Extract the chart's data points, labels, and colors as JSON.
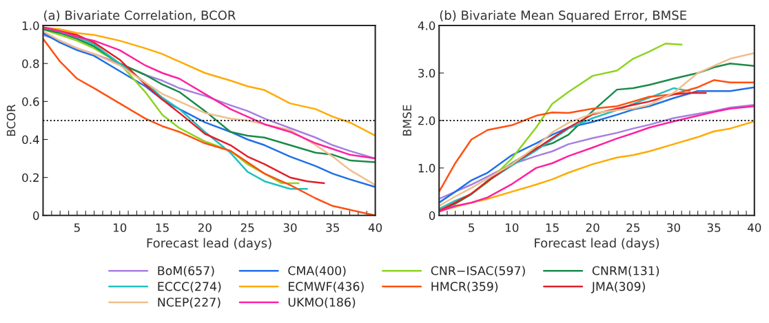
{
  "chart_data": [
    {
      "type": "line",
      "title": "(a) Bivariate Correlation, BCOR",
      "xlabel": "Forecast lead (days)",
      "ylabel": "BCOR",
      "x": [
        1,
        3,
        5,
        7,
        10,
        13,
        15,
        17,
        20,
        23,
        25,
        27,
        30,
        33,
        35,
        37,
        40
      ],
      "series": [
        {
          "name": "BoM(657)",
          "color": "#a57fe0",
          "values": [
            0.95,
            0.92,
            0.88,
            0.85,
            0.8,
            0.74,
            0.71,
            0.67,
            0.63,
            0.58,
            0.55,
            0.51,
            0.46,
            0.41,
            0.37,
            0.34,
            0.3
          ]
        },
        {
          "name": "CMA(400)",
          "color": "#1f6fe8",
          "values": [
            0.96,
            0.91,
            0.87,
            0.84,
            0.76,
            0.68,
            0.61,
            0.56,
            0.49,
            0.44,
            0.4,
            0.37,
            0.31,
            0.26,
            0.22,
            0.19,
            0.15
          ]
        },
        {
          "name": "CNR−ISAC(597)",
          "color": "#8cd41e",
          "x": [
            1,
            3,
            5,
            7,
            10,
            13,
            15,
            17,
            20,
            23,
            25,
            27,
            29,
            31
          ],
          "values": [
            0.98,
            0.95,
            0.92,
            0.88,
            0.8,
            0.65,
            0.53,
            0.46,
            0.39,
            0.34,
            0.27,
            0.22,
            0.17,
            0.17
          ]
        },
        {
          "name": "CNRM(131)",
          "color": "#1a8a4a",
          "values": [
            0.98,
            0.96,
            0.93,
            0.89,
            0.8,
            0.74,
            0.69,
            0.65,
            0.55,
            0.44,
            0.42,
            0.41,
            0.37,
            0.33,
            0.32,
            0.29,
            0.28
          ]
        },
        {
          "name": "ECCC(274)",
          "color": "#22bfbf",
          "x": [
            1,
            3,
            5,
            7,
            10,
            13,
            15,
            17,
            20,
            23,
            25,
            27,
            30,
            32
          ],
          "values": [
            0.99,
            0.97,
            0.94,
            0.9,
            0.8,
            0.7,
            0.62,
            0.56,
            0.44,
            0.33,
            0.23,
            0.18,
            0.14,
            0.14
          ]
        },
        {
          "name": "ECMWF(436)",
          "color": "#ffaa00",
          "values": [
            0.99,
            0.98,
            0.96,
            0.95,
            0.92,
            0.88,
            0.85,
            0.81,
            0.75,
            0.71,
            0.68,
            0.66,
            0.59,
            0.56,
            0.52,
            0.49,
            0.42
          ]
        },
        {
          "name": "HMCR(359)",
          "color": "#ff5010",
          "values": [
            0.93,
            0.81,
            0.72,
            0.67,
            0.59,
            0.51,
            0.47,
            0.44,
            0.38,
            0.34,
            0.28,
            0.22,
            0.16,
            0.09,
            0.05,
            0.03,
            0.0
          ]
        },
        {
          "name": "JMA(309)",
          "color": "#e0202a",
          "x": [
            1,
            3,
            5,
            7,
            10,
            13,
            15,
            17,
            20,
            23,
            25,
            27,
            30,
            32,
            34
          ],
          "values": [
            0.99,
            0.97,
            0.95,
            0.91,
            0.82,
            0.69,
            0.61,
            0.54,
            0.43,
            0.37,
            0.31,
            0.27,
            0.2,
            0.18,
            0.17
          ]
        },
        {
          "name": "NCEP(227)",
          "color": "#f0be8c",
          "values": [
            0.97,
            0.92,
            0.88,
            0.85,
            0.79,
            0.7,
            0.64,
            0.6,
            0.54,
            0.51,
            0.5,
            0.48,
            0.45,
            0.37,
            0.31,
            0.24,
            0.16
          ]
        },
        {
          "name": "UKMO(186)",
          "color": "#ff20a0",
          "values": [
            0.99,
            0.97,
            0.94,
            0.92,
            0.87,
            0.79,
            0.75,
            0.72,
            0.64,
            0.56,
            0.52,
            0.48,
            0.44,
            0.38,
            0.35,
            0.32,
            0.3
          ]
        }
      ],
      "xlim": [
        1,
        40
      ],
      "ylim": [
        0,
        1
      ],
      "xticks": [
        {
          "value": 2,
          "label": null
        },
        {
          "value": 3,
          "label": null
        },
        {
          "value": 4,
          "label": null
        },
        5,
        {
          "value": 6,
          "label": null
        },
        {
          "value": 7,
          "label": null
        },
        {
          "value": 8,
          "label": null
        },
        {
          "value": 9,
          "label": null
        },
        10,
        {
          "value": 11,
          "label": null
        },
        {
          "value": 12,
          "label": null
        },
        {
          "value": 13,
          "label": null
        },
        {
          "value": 14,
          "label": null
        },
        15,
        {
          "value": 16,
          "label": null
        },
        {
          "value": 17,
          "label": null
        },
        {
          "value": 18,
          "label": null
        },
        {
          "value": 19,
          "label": null
        },
        20,
        {
          "value": 21,
          "label": null
        },
        {
          "value": 22,
          "label": null
        },
        {
          "value": 23,
          "label": null
        },
        {
          "value": 24,
          "label": null
        },
        25,
        {
          "value": 26,
          "label": null
        },
        {
          "value": 27,
          "label": null
        },
        {
          "value": 28,
          "label": null
        },
        {
          "value": 29,
          "label": null
        },
        30,
        {
          "value": 31,
          "label": null
        },
        {
          "value": 32,
          "label": null
        },
        {
          "value": 33,
          "label": null
        },
        {
          "value": 34,
          "label": null
        },
        35,
        {
          "value": 36,
          "label": null
        },
        {
          "value": 37,
          "label": null
        },
        {
          "value": 38,
          "label": null
        },
        {
          "value": 39,
          "label": null
        },
        40
      ],
      "yticks": [
        0,
        0.2,
        0.4,
        0.6,
        0.8,
        {
          "value": 1,
          "label": "1.0"
        }
      ],
      "ref_lines": [
        {
          "axis": "y",
          "value": 0.5,
          "color": "#000000",
          "line_style": "dotted"
        }
      ],
      "grid": false,
      "legend": "bottom"
    },
    {
      "type": "line",
      "title": "(b) Bivariate Mean Squared Error, BMSE",
      "xlabel": "Forecast lead (days)",
      "ylabel": "BMSE",
      "x": [
        1,
        3,
        5,
        7,
        10,
        13,
        15,
        17,
        20,
        23,
        25,
        27,
        30,
        33,
        35,
        37,
        40
      ],
      "series": [
        {
          "name": "BoM(657)",
          "color": "#a57fe0",
          "values": [
            0.35,
            0.5,
            0.65,
            0.82,
            1.08,
            1.25,
            1.35,
            1.5,
            1.63,
            1.74,
            1.83,
            1.91,
            2.05,
            2.14,
            2.2,
            2.27,
            2.33
          ]
        },
        {
          "name": "CMA(400)",
          "color": "#1f6fe8",
          "values": [
            0.27,
            0.5,
            0.74,
            0.9,
            1.27,
            1.52,
            1.7,
            1.85,
            1.97,
            2.12,
            2.23,
            2.3,
            2.47,
            2.62,
            2.62,
            2.62,
            2.7
          ]
        },
        {
          "name": "CNR−ISAC(597)",
          "color": "#8cd41e",
          "x": [
            1,
            3,
            5,
            7,
            10,
            13,
            15,
            17,
            20,
            23,
            25,
            27,
            29,
            31
          ],
          "values": [
            0.1,
            0.25,
            0.45,
            0.7,
            1.2,
            1.85,
            2.35,
            2.6,
            2.94,
            3.05,
            3.3,
            3.45,
            3.62,
            3.6
          ]
        },
        {
          "name": "CNRM(131)",
          "color": "#1a8a4a",
          "values": [
            0.1,
            0.25,
            0.45,
            0.73,
            1.1,
            1.42,
            1.52,
            1.7,
            2.2,
            2.65,
            2.68,
            2.75,
            2.88,
            3.0,
            3.12,
            3.2,
            3.15
          ]
        },
        {
          "name": "ECCC(274)",
          "color": "#22bfbf",
          "x": [
            1,
            3,
            5,
            7,
            10,
            13,
            15,
            17,
            20,
            23,
            25,
            27,
            30,
            32
          ],
          "values": [
            0.14,
            0.31,
            0.45,
            0.72,
            1.05,
            1.37,
            1.6,
            1.83,
            2.05,
            2.22,
            2.35,
            2.48,
            2.68,
            2.62
          ]
        },
        {
          "name": "ECMWF(436)",
          "color": "#ffaa00",
          "values": [
            0.1,
            0.18,
            0.27,
            0.35,
            0.5,
            0.65,
            0.76,
            0.9,
            1.08,
            1.22,
            1.27,
            1.35,
            1.5,
            1.65,
            1.77,
            1.83,
            1.98
          ]
        },
        {
          "name": "HMCR(359)",
          "color": "#ff5010",
          "values": [
            0.5,
            1.1,
            1.6,
            1.8,
            1.9,
            2.1,
            2.17,
            2.16,
            2.25,
            2.3,
            2.4,
            2.5,
            2.55,
            2.7,
            2.85,
            2.8,
            2.8
          ]
        },
        {
          "name": "JMA(309)",
          "color": "#e0202a",
          "x": [
            1,
            3,
            5,
            7,
            10,
            13,
            15,
            17,
            20,
            23,
            25,
            27,
            30,
            32,
            34
          ],
          "values": [
            0.1,
            0.27,
            0.46,
            0.72,
            1.08,
            1.4,
            1.63,
            1.85,
            2.13,
            2.25,
            2.33,
            2.4,
            2.55,
            2.58,
            2.58
          ]
        },
        {
          "name": "NCEP(227)",
          "color": "#f0be8c",
          "values": [
            0.2,
            0.4,
            0.58,
            0.78,
            1.08,
            1.45,
            1.75,
            1.95,
            2.15,
            2.22,
            2.25,
            2.33,
            2.58,
            3.0,
            3.15,
            3.3,
            3.42
          ]
        },
        {
          "name": "UKMO(186)",
          "color": "#ff20a0",
          "values": [
            0.08,
            0.2,
            0.27,
            0.38,
            0.66,
            1.0,
            1.1,
            1.25,
            1.43,
            1.62,
            1.73,
            1.85,
            1.98,
            2.1,
            2.18,
            2.25,
            2.3
          ]
        }
      ],
      "xlim": [
        1,
        40
      ],
      "ylim": [
        0,
        4
      ],
      "xticks": [
        {
          "value": 2,
          "label": null
        },
        {
          "value": 3,
          "label": null
        },
        {
          "value": 4,
          "label": null
        },
        5,
        {
          "value": 6,
          "label": null
        },
        {
          "value": 7,
          "label": null
        },
        {
          "value": 8,
          "label": null
        },
        {
          "value": 9,
          "label": null
        },
        10,
        {
          "value": 11,
          "label": null
        },
        {
          "value": 12,
          "label": null
        },
        {
          "value": 13,
          "label": null
        },
        {
          "value": 14,
          "label": null
        },
        15,
        {
          "value": 16,
          "label": null
        },
        {
          "value": 17,
          "label": null
        },
        {
          "value": 18,
          "label": null
        },
        {
          "value": 19,
          "label": null
        },
        20,
        {
          "value": 21,
          "label": null
        },
        {
          "value": 22,
          "label": null
        },
        {
          "value": 23,
          "label": null
        },
        {
          "value": 24,
          "label": null
        },
        25,
        {
          "value": 26,
          "label": null
        },
        {
          "value": 27,
          "label": null
        },
        {
          "value": 28,
          "label": null
        },
        {
          "value": 29,
          "label": null
        },
        30,
        {
          "value": 31,
          "label": null
        },
        {
          "value": 32,
          "label": null
        },
        {
          "value": 33,
          "label": null
        },
        {
          "value": 34,
          "label": null
        },
        35,
        {
          "value": 36,
          "label": null
        },
        {
          "value": 37,
          "label": null
        },
        {
          "value": 38,
          "label": null
        },
        {
          "value": 39,
          "label": null
        },
        40
      ],
      "yticks": [
        0,
        {
          "value": 1,
          "label": "1.0"
        },
        {
          "value": 2,
          "label": "2.0"
        },
        {
          "value": 3,
          "label": "3.0"
        },
        {
          "value": 4,
          "label": "4.0"
        }
      ],
      "ref_lines": [
        {
          "axis": "y",
          "value": 2,
          "color": "#000000",
          "line_style": "dotted"
        }
      ],
      "grid": false
    }
  ]
}
